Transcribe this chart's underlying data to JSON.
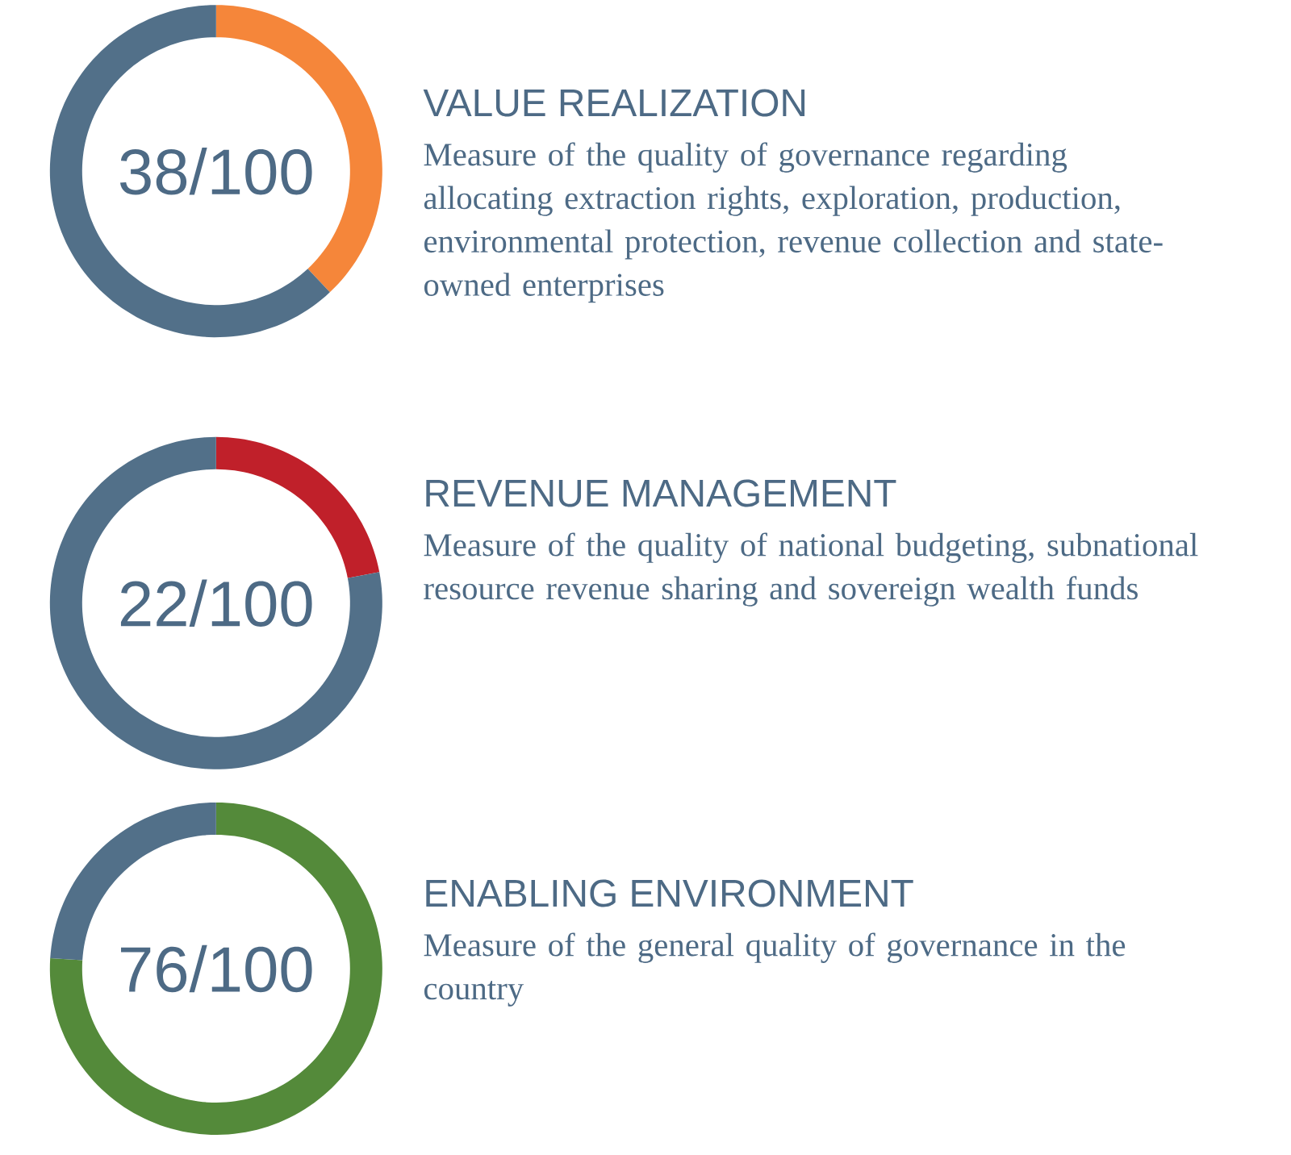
{
  "chart_data": [
    {
      "type": "donut",
      "title": "VALUE REALIZATION",
      "subtitle": "Measure of the quality of governance regarding allocating extraction rights, exploration, production, environmental protection, revenue collection and state-owned enterprises",
      "categories": [
        null,
        null
      ],
      "values": [
        38,
        62
      ],
      "colors": [
        "#f5863a",
        "#527089"
      ],
      "annotations": [
        "38/100"
      ]
    },
    {
      "type": "donut",
      "title": "REVENUE MANAGEMENT",
      "subtitle": "Measure of the quality of national budgeting, subnational resource revenue sharing and sovereign wealth funds",
      "categories": [
        null,
        null
      ],
      "values": [
        22,
        78
      ],
      "colors": [
        "#c0202a",
        "#527089"
      ],
      "annotations": [
        "22/100"
      ]
    },
    {
      "type": "donut",
      "title": "ENABLING ENVIRONMENT",
      "subtitle": "Measure of the general quality of governance in the country",
      "categories": [
        null,
        null
      ],
      "values": [
        76,
        24
      ],
      "colors": [
        "#548a3a",
        "#527089"
      ],
      "annotations": [
        "76/100"
      ]
    }
  ]
}
